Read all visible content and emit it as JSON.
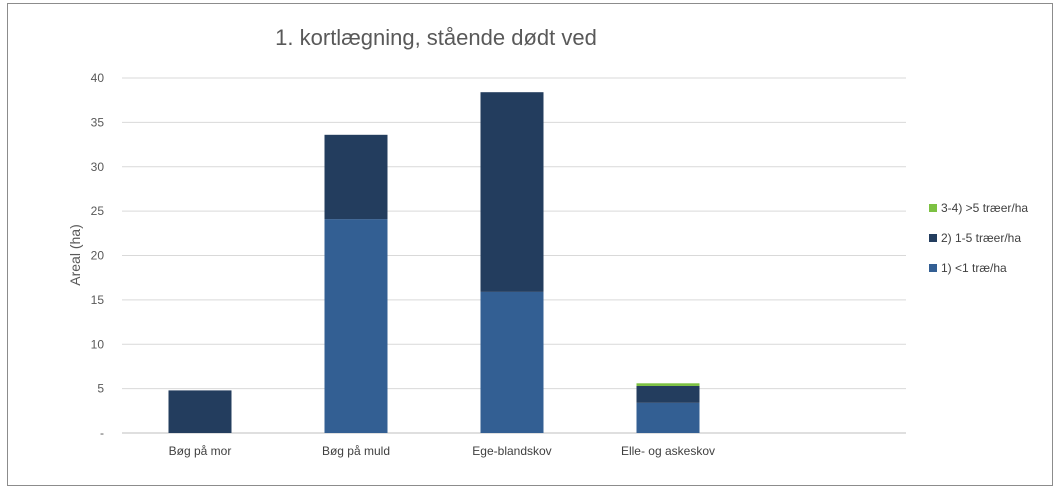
{
  "chart_data": {
    "type": "bar",
    "stacked": true,
    "title": "1. kortlægning, stående dødt ved",
    "xlabel": "",
    "ylabel": "Areal (ha)",
    "ylim": [
      0,
      40
    ],
    "yticks": [
      "-",
      "5",
      "10",
      "15",
      "20",
      "25",
      "30",
      "35",
      "40"
    ],
    "categories": [
      "Bøg på mor",
      "Bøg på muld",
      "Ege-blandskov",
      "Elle- og askeskov"
    ],
    "series": [
      {
        "name": "1) <1 træ/ha",
        "color": "#335f93",
        "values": [
          0,
          24.1,
          15.9,
          3.4
        ]
      },
      {
        "name": "2) 1-5 træer/ha",
        "color": "#233d5e",
        "values": [
          4.8,
          9.5,
          22.5,
          1.9
        ]
      },
      {
        "name": "3-4) >5 træer/ha",
        "color": "#7cc142",
        "values": [
          0,
          0,
          0,
          0.3
        ]
      }
    ],
    "legend": [
      "3-4) >5 træer/ha",
      "2) 1-5 træer/ha",
      "1) <1 træ/ha"
    ],
    "legend_position": "right",
    "grid": true
  }
}
